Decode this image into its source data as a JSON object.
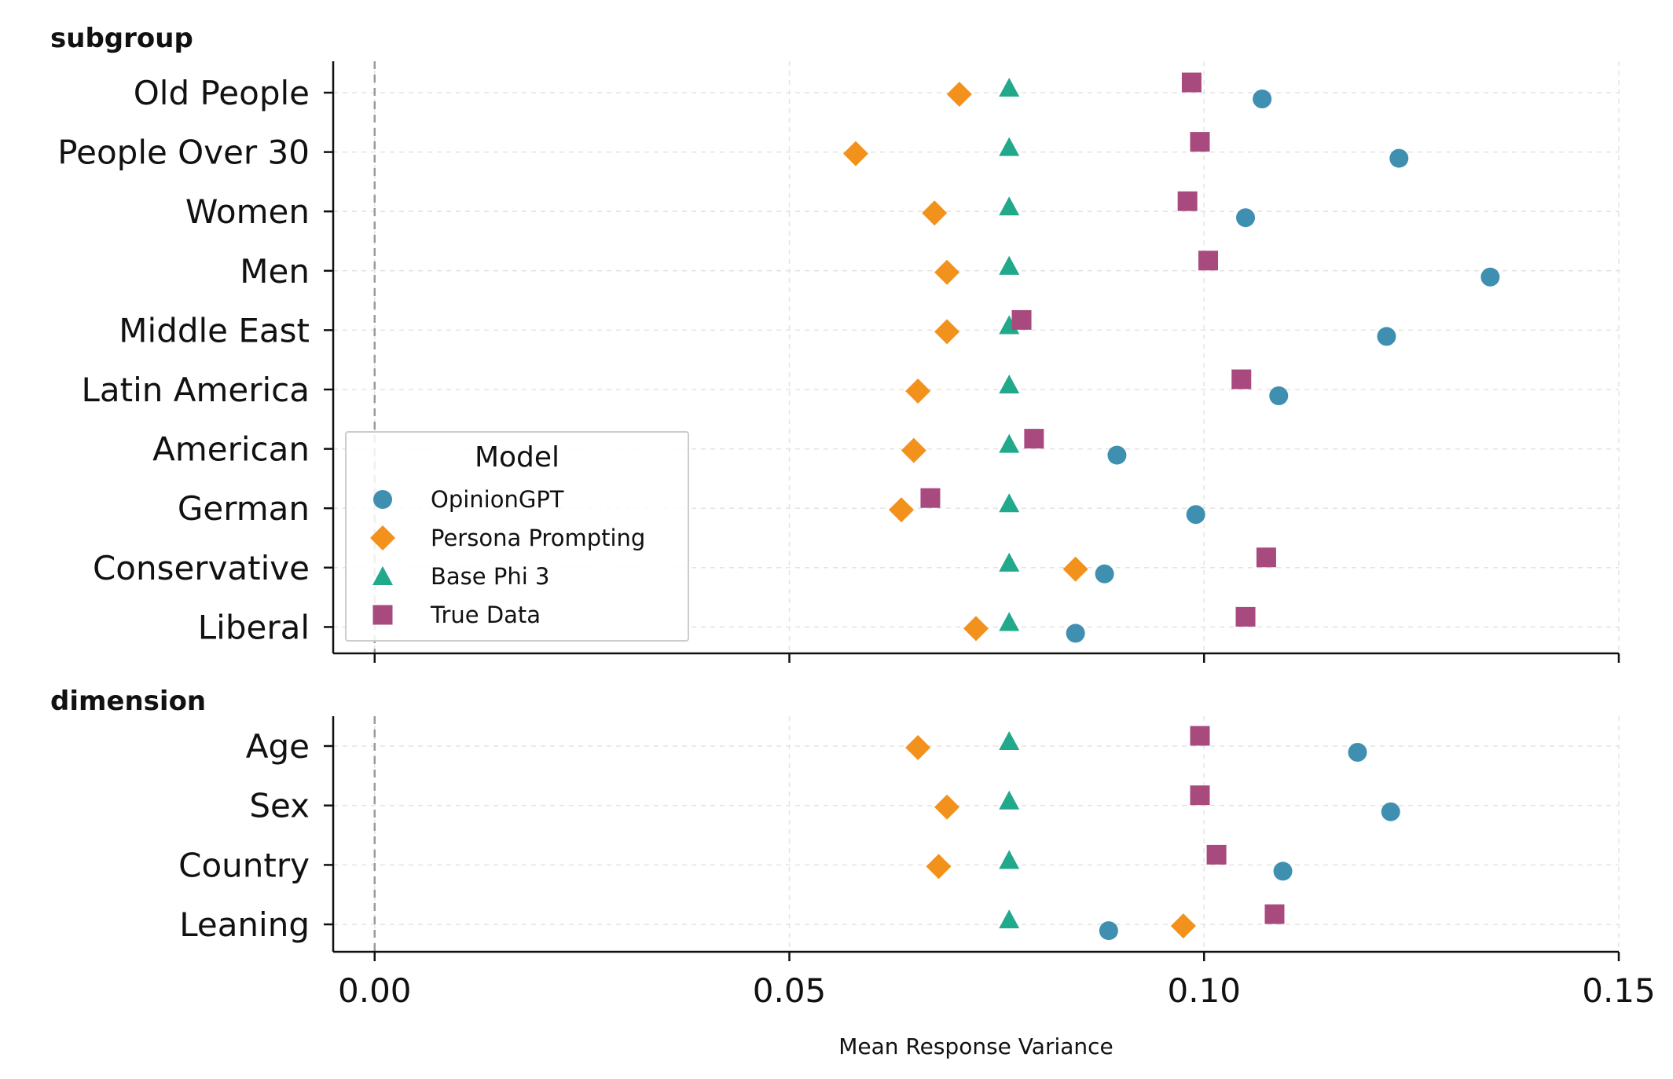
{
  "chart_data": {
    "type": "scatter",
    "xlabel": "Mean Response Variance",
    "xlim": [
      -0.005,
      0.15
    ],
    "xticks": [
      0.0,
      0.05,
      0.1,
      0.15
    ],
    "xtick_labels": [
      "0.00",
      "0.05",
      "0.10",
      "0.15"
    ],
    "grid": true,
    "reference_line": 0.0,
    "legend": {
      "title": "Model",
      "placement": "lower-left of top panel",
      "entries": [
        "OpinionGPT",
        "Persona Prompting",
        "Base Phi 3",
        "True Data"
      ]
    },
    "colors": {
      "OpinionGPT": "#3f8fb0",
      "Persona Prompting": "#f2921c",
      "Base Phi 3": "#22a98b",
      "True Data": "#a84a7d"
    },
    "markers": {
      "OpinionGPT": "circle",
      "Persona Prompting": "diamond",
      "Base Phi 3": "triangle",
      "True Data": "square"
    },
    "panels": [
      {
        "title": "subgroup",
        "categories": [
          "Old People",
          "People Over 30",
          "Women",
          "Men",
          "Middle East",
          "Latin America",
          "American",
          "German",
          "Conservative",
          "Liberal"
        ],
        "series": [
          {
            "name": "OpinionGPT",
            "values": [
              0.107,
              0.1235,
              0.105,
              0.1345,
              0.122,
              0.109,
              0.0895,
              0.099,
              0.088,
              0.0845
            ]
          },
          {
            "name": "Persona Prompting",
            "values": [
              0.0705,
              0.058,
              0.0675,
              0.069,
              0.069,
              0.0655,
              0.065,
              0.0635,
              0.0845,
              0.0725
            ]
          },
          {
            "name": "Base Phi 3",
            "values": [
              0.0765,
              0.0765,
              0.0765,
              0.0765,
              0.0765,
              0.0765,
              0.0765,
              0.0765,
              0.0765,
              0.0765
            ]
          },
          {
            "name": "True Data",
            "values": [
              0.0985,
              0.0995,
              0.098,
              0.1005,
              0.078,
              0.1045,
              0.0795,
              0.067,
              0.1075,
              0.105
            ]
          }
        ]
      },
      {
        "title": "dimension",
        "categories": [
          "Age",
          "Sex",
          "Country",
          "Leaning"
        ],
        "series": [
          {
            "name": "OpinionGPT",
            "values": [
              0.1185,
              0.1225,
              0.1095,
              0.0885
            ]
          },
          {
            "name": "Persona Prompting",
            "values": [
              0.0655,
              0.069,
              0.068,
              0.0975
            ]
          },
          {
            "name": "Base Phi 3",
            "values": [
              0.0765,
              0.0765,
              0.0765,
              0.0765
            ]
          },
          {
            "name": "True Data",
            "values": [
              0.0995,
              0.0995,
              0.1015,
              0.1085
            ]
          }
        ]
      }
    ]
  }
}
